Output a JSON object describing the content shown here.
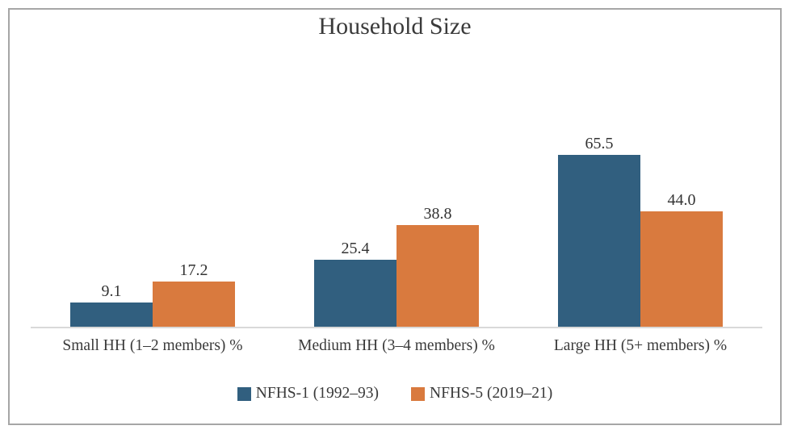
{
  "chart_data": {
    "type": "bar",
    "title": "Household Size",
    "categories": [
      "Small HH (1–2 members) %",
      "Medium HH (3–4 members) %",
      "Large HH (5+ members) %"
    ],
    "series": [
      {
        "name": "NFHS-1 (1992–93)",
        "color": "#315f7f",
        "values": [
          9.1,
          25.4,
          65.5
        ]
      },
      {
        "name": "NFHS-5 (2019–21)",
        "color": "#d97a3e",
        "values": [
          17.2,
          38.8,
          44.0
        ]
      }
    ],
    "xlabel": "",
    "ylabel": "",
    "ylim": [
      0,
      70
    ],
    "grid": false,
    "legend_position": "bottom",
    "value_labels": true,
    "value_label_decimals": 1,
    "axis_line_color": "#d9d9d9",
    "frame_border_color": "#a6a6a6",
    "text_color": "#3a3a3a"
  }
}
